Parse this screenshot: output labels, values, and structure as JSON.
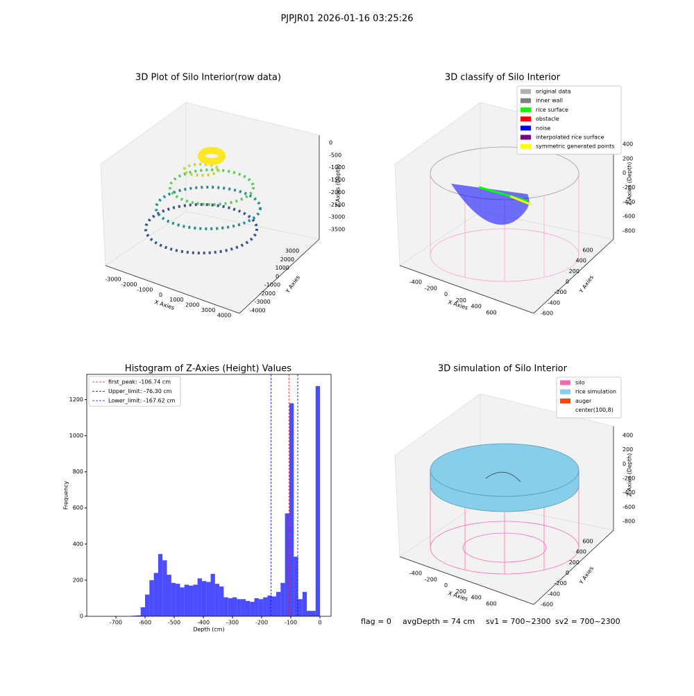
{
  "title": "PJPJR01 2026-01-16 03:25:26",
  "chart_data": [
    {
      "type": "scatter3d",
      "title": "3D Plot of Silo Interior(row data)",
      "xlabel": "X Axies",
      "ylabel": "Y Axies",
      "zlabel": "Z Axies (Depth)",
      "xticks": [
        -3000,
        -2000,
        -1000,
        0,
        1000,
        2000,
        3000,
        4000
      ],
      "yticks": [
        -4000,
        -3000,
        -2000,
        -1000,
        0,
        1000,
        2000,
        3000
      ],
      "zticks": [
        0,
        -500,
        -1000,
        -1500,
        -2000,
        -2500,
        -3000,
        -3500
      ]
    },
    {
      "type": "scatter3d",
      "title": "3D classify of Silo Interior",
      "xlabel": "X Axies",
      "ylabel": "Y Axies",
      "zlabel": "Z Axies (Depth)",
      "xticks": [
        -400,
        -200,
        0,
        200,
        400,
        600
      ],
      "yticks": [
        -600,
        -400,
        -200,
        0,
        200,
        400,
        600
      ],
      "zticks": [
        400,
        200,
        0,
        -200,
        -400,
        -600,
        -800
      ],
      "legend": [
        {
          "name": "original data",
          "color": "#b0b0b0"
        },
        {
          "name": "inner wall",
          "color": "#808080"
        },
        {
          "name": "rice surface",
          "color": "#00ff00"
        },
        {
          "name": "obstacle",
          "color": "#ff0000"
        },
        {
          "name": "noise",
          "color": "#0000ff"
        },
        {
          "name": "interpolated rice surface",
          "color": "#800080"
        },
        {
          "name": "symmetric generated points",
          "color": "#ffff00"
        }
      ]
    },
    {
      "type": "histogram",
      "title": "Histogram of Z-Axies (Height) Values",
      "xlabel": "Depth (cm)",
      "ylabel": "Frequency",
      "color": "#0000ff",
      "bins": [
        -645,
        -630,
        -615,
        -600,
        -585,
        -570,
        -555,
        -540,
        -525,
        -510,
        -495,
        -480,
        -465,
        -450,
        -435,
        -420,
        -405,
        -390,
        -375,
        -360,
        -345,
        -330,
        -315,
        -300,
        -285,
        -270,
        -255,
        -240,
        -225,
        -210,
        -195,
        -180,
        -165,
        -150,
        -135,
        -120,
        -105,
        -90,
        -75,
        -60,
        -45,
        -30,
        -15,
        0
      ],
      "values": [
        3,
        5,
        50,
        120,
        200,
        240,
        345,
        310,
        230,
        185,
        180,
        160,
        175,
        170,
        175,
        210,
        195,
        190,
        235,
        180,
        165,
        105,
        100,
        105,
        95,
        95,
        85,
        80,
        100,
        95,
        105,
        115,
        110,
        135,
        185,
        570,
        1180,
        330,
        95,
        135,
        30,
        30,
        1275
      ],
      "xlim": [
        -800,
        38
      ],
      "ylim": [
        0,
        1340
      ],
      "xticks": [
        -700,
        -600,
        -500,
        -400,
        -300,
        -200,
        -100,
        0
      ],
      "yticks": [
        0,
        200,
        400,
        600,
        800,
        1000,
        1200
      ],
      "vlines": [
        {
          "name": "first_peak: -106.74 cm",
          "value": -106.74,
          "color": "#ff0000"
        },
        {
          "name": "Upper_limit: -76.30 cm",
          "value": -76.3,
          "color": "#00008b"
        },
        {
          "name": "Lower_limit: -167.62 cm",
          "value": -167.62,
          "color": "#0000ff"
        }
      ]
    },
    {
      "type": "surface3d",
      "title": "3D simulation of Silo Interior",
      "xlabel": "X Axies",
      "ylabel": "Y Axies",
      "zlabel": "Z Axies (Depth)",
      "xticks": [
        -400,
        -200,
        0,
        200,
        400,
        600
      ],
      "yticks": [
        -600,
        -400,
        -200,
        0,
        200,
        400,
        600
      ],
      "zticks": [
        400,
        200,
        0,
        -200,
        -400,
        -600,
        -800
      ],
      "legend": [
        {
          "name": "silo",
          "color": "#ff69b4"
        },
        {
          "name": "rice simulation",
          "color": "#87ceeb"
        },
        {
          "name": "auger",
          "color": "#ff4500"
        },
        {
          "name": "center(100,8)",
          "color": "#ffffff"
        }
      ]
    }
  ],
  "footer": [
    "flag = 0",
    "avgDepth = 74 cm",
    "sv1 = 700~2300",
    "sv2 = 700~2300"
  ]
}
